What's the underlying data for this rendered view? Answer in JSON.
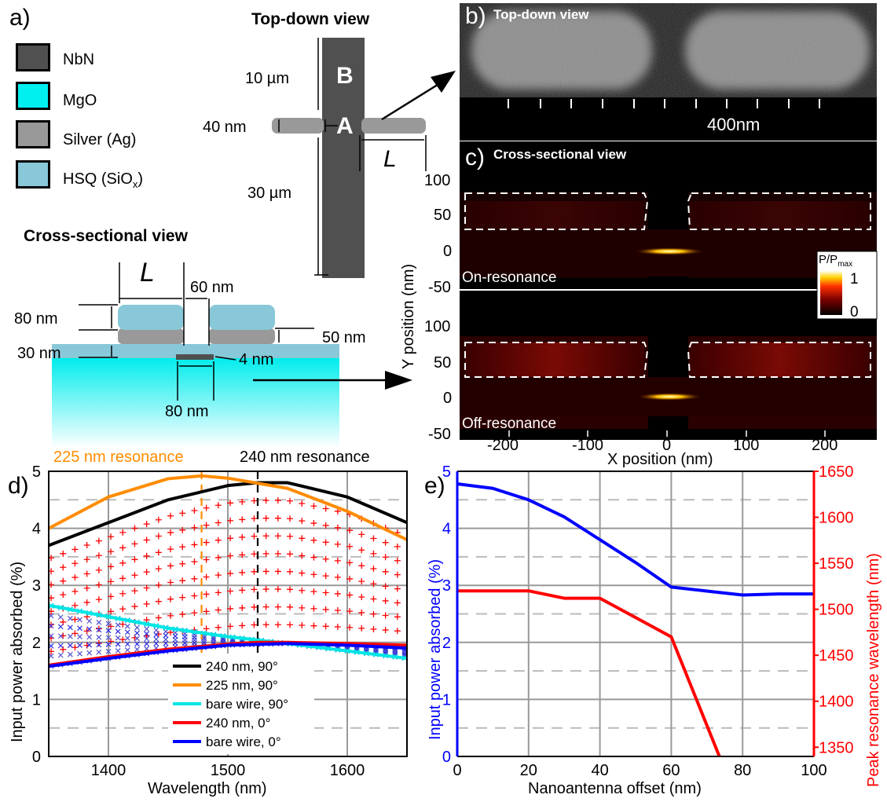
{
  "panel_a": {
    "tag": "a)",
    "legend": [
      {
        "label": "NbN",
        "color": "#505050"
      },
      {
        "label": "MgO",
        "color": "#00f0f0"
      },
      {
        "label": "Silver (Ag)",
        "color": "#999999"
      },
      {
        "label": "HSQ (SiO",
        "sub": "x",
        "tail": ")",
        "color": "#88c8d8"
      }
    ],
    "topdown": {
      "title": "Top-down view",
      "dim_10um": "10 µm",
      "dim_30um": "30 µm",
      "dim_40nm": "40 nm",
      "label_B": "B",
      "label_A": "A",
      "label_L": "L"
    },
    "cross": {
      "title": "Cross-sectional view",
      "label_L": "L",
      "dim_60nm": "60 nm",
      "dim_80nm_h": "80 nm",
      "dim_50nm": "50 nm",
      "dim_30nm": "30 nm",
      "dim_4nm": "4 nm",
      "dim_80nm_w": "80 nm"
    }
  },
  "panel_b": {
    "tag": "b)",
    "title": "Top-down view",
    "scale": "400nm"
  },
  "panel_c": {
    "tag": "c)",
    "title": "Cross-sectional view",
    "on_label": "On-resonance",
    "off_label": "Off-resonance",
    "colorbar_title": "P/P",
    "colorbar_sub": "max",
    "colorbar_max": "1",
    "colorbar_min": "0",
    "ylabel": "Y position (nm)",
    "xlabel": "X position (nm)",
    "yticks_top": [
      "100",
      "50",
      "0",
      "-50"
    ],
    "yticks_bottom": [
      "100",
      "50",
      "0",
      "-50"
    ],
    "xticks": [
      "-200",
      "-100",
      "0",
      "100",
      "200"
    ]
  },
  "panel_d": {
    "tag": "d)",
    "res225": "225 nm resonance",
    "res240": "240 nm resonance",
    "colors": {
      "res225": "#ff8c00",
      "res240": "#000000"
    }
  },
  "panel_e": {
    "tag": "e)"
  },
  "chart_data": [
    {
      "type": "line",
      "panel": "d",
      "xlabel": "Wavelength (nm)",
      "ylabel": "Input power absorbed (%)",
      "xlim": [
        1350,
        1650
      ],
      "ylim": [
        0,
        5
      ],
      "xticks": [
        1400,
        1500,
        1600
      ],
      "yticks": [
        0,
        1,
        2,
        3,
        4,
        5
      ],
      "grid": true,
      "legend_position": "bottom-center",
      "vlines": [
        {
          "x": 1478,
          "color": "#ff8c00"
        },
        {
          "x": 1525,
          "color": "#000000"
        }
      ],
      "series": [
        {
          "name": "240 nm, 90°",
          "color": "#000000",
          "x": [
            1350,
            1400,
            1450,
            1500,
            1525,
            1550,
            1600,
            1650
          ],
          "y": [
            3.7,
            4.1,
            4.5,
            4.75,
            4.8,
            4.8,
            4.55,
            4.1
          ]
        },
        {
          "name": "225 nm, 90°",
          "color": "#ff8c00",
          "x": [
            1350,
            1400,
            1450,
            1478,
            1500,
            1550,
            1600,
            1650
          ],
          "y": [
            4.0,
            4.55,
            4.87,
            4.92,
            4.88,
            4.7,
            4.3,
            3.8
          ]
        },
        {
          "name": "bare wire, 90°",
          "color": "#00e5e5",
          "x": [
            1350,
            1400,
            1450,
            1500,
            1550,
            1600,
            1650
          ],
          "y": [
            2.65,
            2.45,
            2.25,
            2.1,
            1.98,
            1.85,
            1.72
          ]
        },
        {
          "name": "240 nm, 0°",
          "color": "#ff0000",
          "x": [
            1350,
            1400,
            1450,
            1500,
            1525,
            1550,
            1600,
            1650
          ],
          "y": [
            1.6,
            1.75,
            1.88,
            1.97,
            2.0,
            2.0,
            1.98,
            1.95
          ]
        },
        {
          "name": "bare wire, 0°",
          "color": "#0000ff",
          "x": [
            1350,
            1400,
            1450,
            1500,
            1550,
            1600,
            1650
          ],
          "y": [
            1.58,
            1.72,
            1.85,
            1.95,
            1.98,
            1.95,
            1.9
          ]
        }
      ]
    },
    {
      "type": "line",
      "panel": "e",
      "xlabel": "Nanoantenna offset (nm)",
      "ylabel_left": "Input power absorbed (%)",
      "ylabel_right": "Peak resonance wavelength (nm)",
      "xlim": [
        0,
        100
      ],
      "ylim_left": [
        0,
        5
      ],
      "ylim_right": [
        1340,
        1650
      ],
      "xticks": [
        0,
        20,
        40,
        60,
        80,
        100
      ],
      "yticks_left": [
        0,
        1,
        2,
        3,
        4,
        5
      ],
      "yticks_right": [
        1350,
        1400,
        1450,
        1500,
        1550,
        1600,
        1650
      ],
      "grid": true,
      "series": [
        {
          "name": "absorbed",
          "axis": "left",
          "color": "#0000ff",
          "x": [
            0,
            10,
            20,
            30,
            40,
            50,
            60,
            70,
            80,
            90,
            100
          ],
          "y": [
            4.78,
            4.7,
            4.5,
            4.2,
            3.8,
            3.4,
            2.97,
            2.9,
            2.83,
            2.85,
            2.85
          ]
        },
        {
          "name": "peak",
          "axis": "right",
          "color": "#ff0000",
          "x": [
            0,
            10,
            20,
            30,
            40,
            60,
            73.5
          ],
          "y": [
            1520,
            1520,
            1520,
            1512,
            1512,
            1470,
            1340
          ]
        }
      ]
    }
  ]
}
